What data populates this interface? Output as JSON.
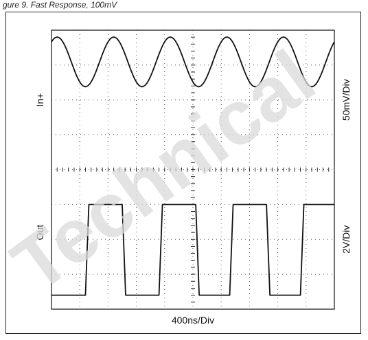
{
  "caption": "gure 9. Fast Response, 100mV",
  "watermark_text": "Technical",
  "colors": {
    "trace": "#111111",
    "grid": "#555555",
    "watermark": "#d9d9d9"
  },
  "chart_data": {
    "type": "line",
    "title": "",
    "xlabel": "400ns/Div",
    "grid": true,
    "divisions": {
      "x": 10,
      "y": 8
    },
    "channels": [
      {
        "name": "In+",
        "scale_label": "50mV/Div",
        "waveform": "sine",
        "period_div": 2.0,
        "peak_div": 3.8,
        "trough_div": 2.38,
        "series": {
          "name": "In+",
          "x_div": [
            0.2,
            1.2,
            2.2,
            3.2,
            4.2,
            5.2,
            6.2,
            7.2,
            8.2,
            9.2
          ],
          "y_div": [
            3.8,
            2.38,
            3.8,
            2.38,
            3.8,
            2.38,
            3.8,
            2.38,
            3.8,
            2.38
          ]
        }
      },
      {
        "name": "Out",
        "scale_label": "2V/Div",
        "waveform": "square",
        "high_div": -1.0,
        "low_div": -3.6,
        "transitions_div": [
          1.2,
          2.5,
          3.8,
          5.1,
          6.3,
          7.6,
          8.8
        ]
      }
    ]
  }
}
